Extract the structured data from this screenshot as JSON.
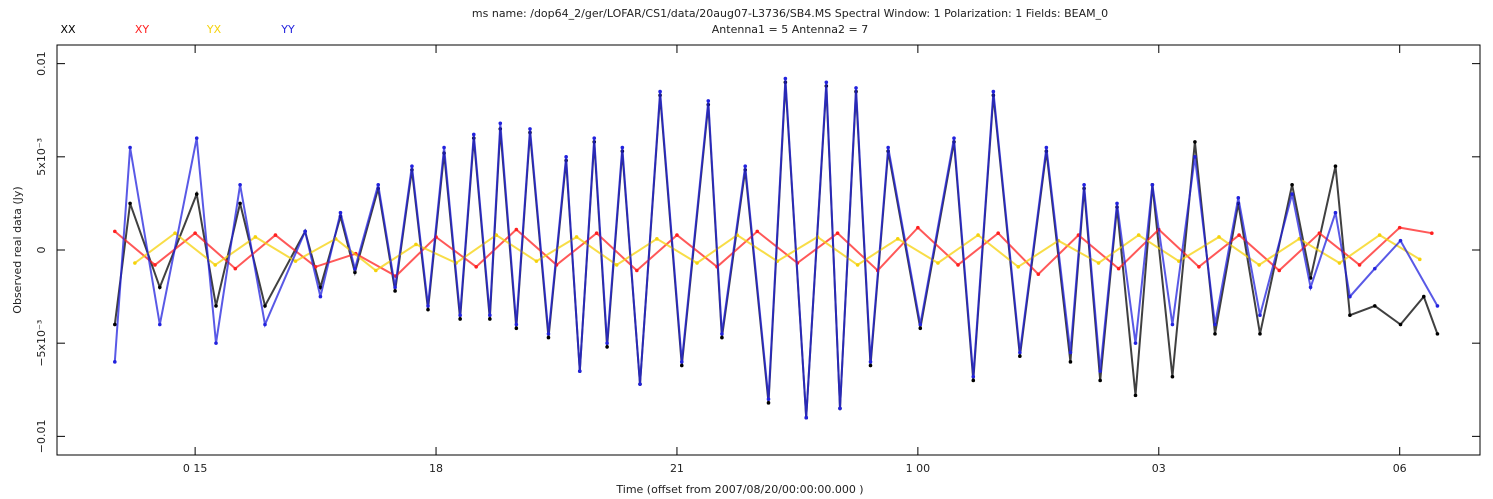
{
  "chart_data": {
    "type": "line",
    "title": "ms name: /dop64_2/ger/LOFAR/CS1/data/20aug07-L3736/SB4.MS Spectral Window: 1 Polarization: 1 Fields: BEAM_0",
    "subtitle": "Antenna1 = 5 Antenna2 = 7",
    "x_label": "Time (offset from  2007/08/20/00:00:00.000 )",
    "y_label": "Observed real data (Jy)",
    "xlim": [
      13.28,
      31.0
    ],
    "xticks": [
      {
        "value": 15,
        "label": "0 15"
      },
      18,
      21,
      {
        "value": 24,
        "label": "1 00"
      },
      {
        "value": 27,
        "label": "03"
      },
      {
        "value": 30,
        "label": "06"
      }
    ],
    "ylim": [
      -0.011,
      0.011
    ],
    "yticks": [
      {
        "value": -0.01,
        "label": "−0.01"
      },
      {
        "value": -0.005,
        "label": "−5x10⁻³"
      },
      0,
      {
        "value": 0.005,
        "label": "5x10⁻³"
      },
      0.01
    ],
    "series": [
      {
        "name": "XX",
        "color": "#000000",
        "x": [
          14.0,
          14.19,
          14.56,
          15.02,
          15.26,
          15.56,
          15.87,
          16.37,
          16.56,
          16.81,
          16.99,
          17.28,
          17.49,
          17.7,
          17.9,
          18.1,
          18.3,
          18.47,
          18.67,
          18.8,
          19.0,
          19.17,
          19.4,
          19.62,
          19.79,
          19.97,
          20.13,
          20.32,
          20.54,
          20.79,
          21.06,
          21.39,
          21.56,
          21.85,
          22.14,
          22.35,
          22.61,
          22.86,
          23.03,
          23.23,
          23.41,
          23.63,
          24.03,
          24.45,
          24.69,
          24.94,
          25.27,
          25.6,
          25.9,
          26.07,
          26.27,
          26.48,
          26.71,
          26.92,
          27.17,
          27.45,
          27.7,
          27.99,
          28.26,
          28.66,
          28.89,
          29.2,
          29.38,
          29.69,
          30.01,
          30.3,
          30.47
        ],
        "values": [
          -0.004,
          0.0025,
          -0.002,
          0.003,
          -0.003,
          0.0025,
          -0.003,
          0.001,
          -0.002,
          0.0018,
          -0.0012,
          0.0033,
          -0.0022,
          0.0043,
          -0.0032,
          0.0052,
          -0.0037,
          0.006,
          -0.0037,
          0.0065,
          -0.0042,
          0.0063,
          -0.0047,
          0.0048,
          -0.0065,
          0.0058,
          -0.0052,
          0.0053,
          -0.0072,
          0.0083,
          -0.0062,
          0.0078,
          -0.0047,
          0.0043,
          -0.0082,
          0.009,
          -0.009,
          0.0088,
          -0.0085,
          0.0085,
          -0.0062,
          0.0053,
          -0.0042,
          0.0058,
          -0.007,
          0.0083,
          -0.0057,
          0.0053,
          -0.006,
          0.0033,
          -0.007,
          0.0023,
          -0.0078,
          0.0035,
          -0.0068,
          0.0058,
          -0.0045,
          0.0025,
          -0.0045,
          0.0035,
          -0.0015,
          0.0045,
          -0.0035,
          -0.003,
          -0.004,
          -0.0025,
          -0.0045
        ]
      },
      {
        "name": "XY",
        "color": "#ff2020",
        "x": [
          14.0,
          14.5,
          15.0,
          15.5,
          16.0,
          16.5,
          17.0,
          17.5,
          18.0,
          18.5,
          19.0,
          19.5,
          20.0,
          20.5,
          21.0,
          21.5,
          22.0,
          22.5,
          23.0,
          23.5,
          24.0,
          24.5,
          25.0,
          25.5,
          26.0,
          26.5,
          27.0,
          27.5,
          28.0,
          28.5,
          29.0,
          29.5,
          30.0,
          30.4
        ],
        "values": [
          0.001,
          -0.0008,
          0.0009,
          -0.001,
          0.0008,
          -0.0009,
          -0.0002,
          -0.0014,
          0.0007,
          -0.0009,
          0.0011,
          -0.0008,
          0.0009,
          -0.0011,
          0.0008,
          -0.0009,
          0.001,
          -0.0007,
          0.0009,
          -0.0011,
          0.0012,
          -0.0008,
          0.0009,
          -0.0013,
          0.0008,
          -0.001,
          0.0011,
          -0.0009,
          0.0008,
          -0.0011,
          0.0009,
          -0.0008,
          0.0012,
          0.0009
        ]
      },
      {
        "name": "YX",
        "color": "#f5d20a",
        "x": [
          14.25,
          14.75,
          15.25,
          15.75,
          16.25,
          16.75,
          17.25,
          17.75,
          18.25,
          18.75,
          19.25,
          19.75,
          20.25,
          20.75,
          21.25,
          21.75,
          22.25,
          22.75,
          23.25,
          23.75,
          24.25,
          24.75,
          25.25,
          25.75,
          26.25,
          26.75,
          27.25,
          27.75,
          28.25,
          28.75,
          29.25,
          29.75,
          30.25
        ],
        "values": [
          -0.0007,
          0.0009,
          -0.0008,
          0.0007,
          -0.0006,
          0.0006,
          -0.0011,
          0.0003,
          -0.0007,
          0.0008,
          -0.0006,
          0.0007,
          -0.0008,
          0.0006,
          -0.0007,
          0.0008,
          -0.0006,
          0.0007,
          -0.0008,
          0.0006,
          -0.0007,
          0.0008,
          -0.0009,
          0.0005,
          -0.0007,
          0.0008,
          -0.0006,
          0.0007,
          -0.0008,
          0.0006,
          -0.0007,
          0.0008,
          -0.0005
        ]
      },
      {
        "name": "YY",
        "color": "#2222dd",
        "x": [
          14.0,
          14.19,
          14.56,
          15.02,
          15.26,
          15.56,
          15.87,
          16.37,
          16.56,
          16.81,
          16.99,
          17.28,
          17.49,
          17.7,
          17.9,
          18.1,
          18.3,
          18.47,
          18.67,
          18.8,
          19.0,
          19.17,
          19.4,
          19.62,
          19.79,
          19.97,
          20.13,
          20.32,
          20.54,
          20.79,
          21.06,
          21.39,
          21.56,
          21.85,
          22.14,
          22.35,
          22.61,
          22.86,
          23.03,
          23.23,
          23.41,
          23.63,
          24.03,
          24.45,
          24.69,
          24.94,
          25.27,
          25.6,
          25.9,
          26.07,
          26.27,
          26.48,
          26.71,
          26.92,
          27.17,
          27.45,
          27.7,
          27.99,
          28.26,
          28.66,
          28.89,
          29.2,
          29.38,
          29.69,
          30.01,
          30.47
        ],
        "values": [
          -0.006,
          0.0055,
          -0.004,
          0.006,
          -0.005,
          0.0035,
          -0.004,
          0.001,
          -0.0025,
          0.002,
          -0.001,
          0.0035,
          -0.002,
          0.0045,
          -0.003,
          0.0055,
          -0.0035,
          0.0062,
          -0.0035,
          0.0068,
          -0.004,
          0.0065,
          -0.0045,
          0.005,
          -0.0065,
          0.006,
          -0.005,
          0.0055,
          -0.0072,
          0.0085,
          -0.006,
          0.008,
          -0.0045,
          0.0045,
          -0.008,
          0.0092,
          -0.009,
          0.009,
          -0.0085,
          0.0087,
          -0.006,
          0.0055,
          -0.004,
          0.006,
          -0.0068,
          0.0085,
          -0.0055,
          0.0055,
          -0.0055,
          0.0035,
          -0.0065,
          0.0025,
          -0.005,
          0.0035,
          -0.004,
          0.005,
          -0.004,
          0.0028,
          -0.0035,
          0.003,
          -0.002,
          0.002,
          -0.0025,
          -0.001,
          0.0005,
          -0.003
        ]
      }
    ]
  }
}
